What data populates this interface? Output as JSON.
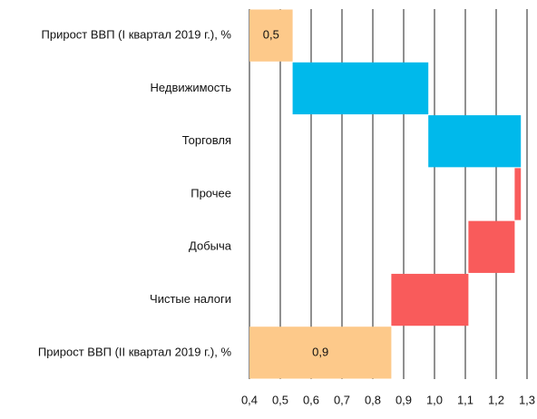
{
  "chart_data": {
    "type": "waterfall",
    "categories": [
      "Прирост ВВП (I квартал 2019 г.), %",
      "Недвижимость",
      "Торговля",
      "Прочее",
      "Добыча",
      "Чистые налоги",
      "Прирост ВВП (II квартал 2019 г.), %"
    ],
    "values": [
      0.54,
      0.44,
      0.3,
      -0.02,
      -0.15,
      -0.25,
      0.86
    ],
    "value_labels": [
      "0,5",
      null,
      null,
      null,
      null,
      null,
      "0,9"
    ],
    "total_color": "#fdc98a",
    "increase_color": "#00b9eb",
    "decrease_color": "#f95b5b",
    "xlim": [
      0.4,
      1.3
    ],
    "xticks": [
      {
        "value": 0.4,
        "label": "0,4"
      },
      {
        "value": 0.5,
        "label": "0,5"
      },
      {
        "value": 0.6,
        "label": "0,6"
      },
      {
        "value": 0.7,
        "label": "0,7"
      },
      {
        "value": 0.8,
        "label": "0,8"
      },
      {
        "value": 0.9,
        "label": "0,9"
      },
      {
        "value": 1.0,
        "label": "1,0"
      },
      {
        "value": 1.1,
        "label": "1,1"
      },
      {
        "value": 1.2,
        "label": "1,2"
      },
      {
        "value": 1.3,
        "label": "1,3"
      }
    ],
    "grid": true
  }
}
